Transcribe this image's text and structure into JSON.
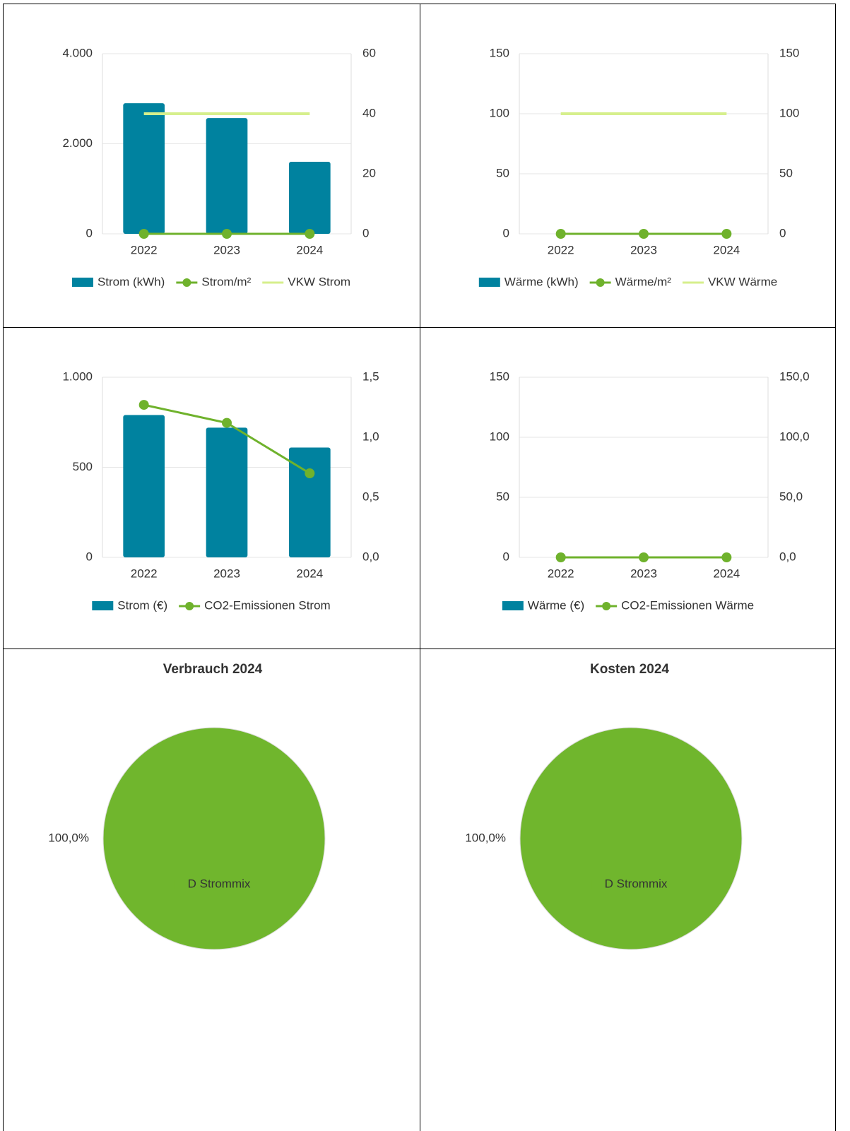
{
  "chart_data": [
    {
      "type": "combo",
      "categories": [
        "2022",
        "2023",
        "2024"
      ],
      "ylim": [
        0,
        4000
      ],
      "yticks": [
        0,
        {
          "value": 2000,
          "label": "2.000"
        },
        {
          "value": 4000,
          "label": "4.000"
        }
      ],
      "y2lim": [
        0,
        60
      ],
      "y2ticks": [
        0,
        20,
        40,
        60
      ],
      "grid": true,
      "series": [
        {
          "name": "Strom (kWh)",
          "type": "bar",
          "color": "#00829f",
          "values": [
            2900,
            2570,
            1600
          ]
        },
        {
          "name": "Strom/m²",
          "type": "line",
          "markers": true,
          "axis": "y2",
          "color": "#6fb22c",
          "values": [
            0,
            0,
            0
          ]
        },
        {
          "name": "VKW Strom",
          "type": "line",
          "markers": false,
          "axis": "y2",
          "color": "#d6ef8c",
          "values": [
            40,
            40,
            40
          ]
        }
      ]
    },
    {
      "type": "combo",
      "categories": [
        "2022",
        "2023",
        "2024"
      ],
      "ylim": [
        0,
        150
      ],
      "yticks": [
        0,
        50,
        100,
        150
      ],
      "y2lim": [
        0,
        150
      ],
      "y2ticks": [
        0,
        50,
        100,
        150
      ],
      "grid": true,
      "series": [
        {
          "name": "Wärme (kWh)",
          "type": "bar",
          "color": "#00829f",
          "values": [
            0,
            0,
            0
          ]
        },
        {
          "name": "Wärme/m²",
          "type": "line",
          "markers": true,
          "axis": "y2",
          "color": "#6fb22c",
          "values": [
            0,
            0,
            0
          ]
        },
        {
          "name": "VKW Wärme",
          "type": "line",
          "markers": false,
          "axis": "y2",
          "color": "#d6ef8c",
          "values": [
            100,
            100,
            100
          ]
        }
      ]
    },
    {
      "type": "combo",
      "categories": [
        "2022",
        "2023",
        "2024"
      ],
      "ylim": [
        0,
        1000
      ],
      "yticks": [
        0,
        500,
        {
          "value": 1000,
          "label": "1.000"
        }
      ],
      "y2lim": [
        0,
        1.5
      ],
      "y2ticks": [
        {
          "value": 0,
          "label": "0,0"
        },
        {
          "value": 0.5,
          "label": "0,5"
        },
        {
          "value": 1,
          "label": "1,0"
        },
        {
          "value": 1.5,
          "label": "1,5"
        }
      ],
      "grid": true,
      "series": [
        {
          "name": "Strom (€)",
          "type": "bar",
          "color": "#00829f",
          "values": [
            790,
            720,
            610
          ]
        },
        {
          "name": "CO2-Emissionen Strom",
          "type": "line",
          "markers": true,
          "axis": "y2",
          "color": "#6fb22c",
          "values": [
            1.27,
            1.12,
            0.7
          ]
        }
      ]
    },
    {
      "type": "combo",
      "categories": [
        "2022",
        "2023",
        "2024"
      ],
      "ylim": [
        0,
        150
      ],
      "yticks": [
        0,
        50,
        100,
        150
      ],
      "y2lim": [
        0,
        150
      ],
      "y2ticks": [
        {
          "value": 0,
          "label": "0,0"
        },
        {
          "value": 50,
          "label": "50,0"
        },
        {
          "value": 100,
          "label": "100,0"
        },
        {
          "value": 150,
          "label": "150,0"
        }
      ],
      "grid": true,
      "series": [
        {
          "name": "Wärme (€)",
          "type": "bar",
          "color": "#00829f",
          "values": [
            0,
            0,
            0
          ]
        },
        {
          "name": "CO2-Emissionen Wärme",
          "type": "line",
          "markers": true,
          "axis": "y2",
          "color": "#6fb22c",
          "values": [
            0,
            0,
            0
          ]
        }
      ]
    },
    {
      "type": "pie",
      "title": "Verbrauch 2024",
      "categories": [
        "D Strommix"
      ],
      "values": [
        100
      ],
      "value_labels": [
        "100,0%"
      ],
      "colors": [
        "#70b62d"
      ]
    },
    {
      "type": "pie",
      "title": "Kosten 2024",
      "categories": [
        "D Strommix"
      ],
      "values": [
        100
      ],
      "value_labels": [
        "100,0%"
      ],
      "colors": [
        "#70b62d"
      ]
    }
  ]
}
